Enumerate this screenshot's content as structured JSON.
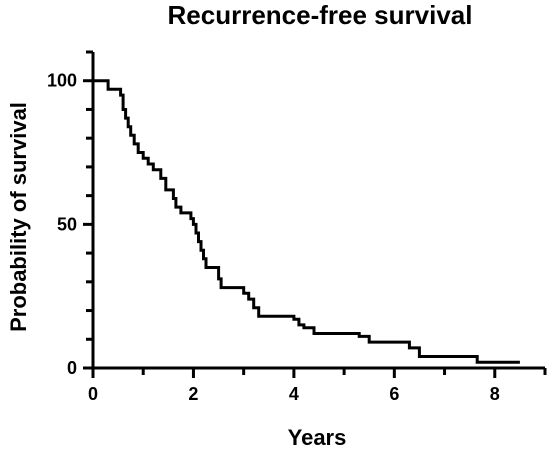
{
  "chart_data": {
    "type": "line",
    "title": "Recurrence-free survival",
    "xlabel": "Years",
    "ylabel": "Probability of survival",
    "xlim": [
      0,
      9
    ],
    "ylim": [
      0,
      110
    ],
    "xticks": [
      0,
      2,
      4,
      6,
      8
    ],
    "yticks": [
      0,
      50,
      100
    ],
    "grid": false,
    "legend": "none",
    "line_color": "#000000",
    "series": [
      {
        "step": "post",
        "x": [
          0,
          0.3,
          0.55,
          0.6,
          0.65,
          0.7,
          0.75,
          0.82,
          0.9,
          1.0,
          1.1,
          1.2,
          1.35,
          1.45,
          1.6,
          1.65,
          1.75,
          1.95,
          2.0,
          2.05,
          2.1,
          2.15,
          2.2,
          2.25,
          2.5,
          2.55,
          3.0,
          3.1,
          3.2,
          3.3,
          4.0,
          4.1,
          4.2,
          4.4,
          4.8,
          5.3,
          5.5,
          6.0,
          6.3,
          6.5,
          7.65,
          8.5
        ],
        "y": [
          100,
          97,
          95,
          90,
          87,
          84,
          81,
          78,
          75,
          73,
          71,
          69,
          66,
          62,
          59,
          56,
          54,
          52,
          50,
          47,
          44,
          41,
          38,
          35,
          31,
          28,
          26,
          24,
          21,
          18,
          17,
          15,
          14,
          12,
          12,
          11,
          9,
          9,
          7,
          4,
          2,
          2
        ]
      }
    ]
  }
}
